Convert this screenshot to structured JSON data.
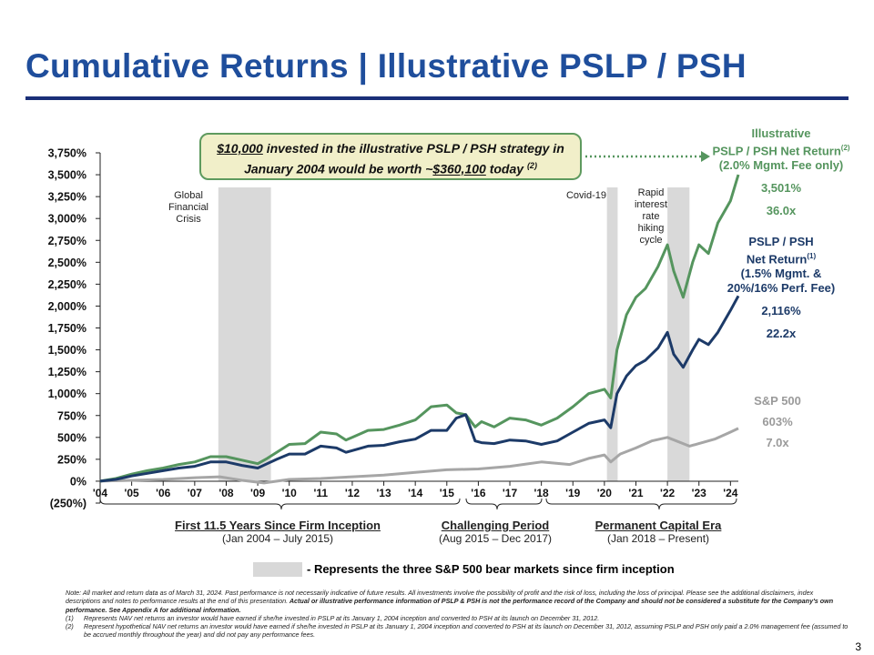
{
  "title": "Cumulative Returns | Illustrative PSLP / PSH",
  "callout": {
    "amount": "$10,000",
    "text1": " invested in the illustrative PSLP / PSH strategy in",
    "text2": "January 2004 would be worth ~",
    "value": "$360,100",
    "text3": " today ",
    "ref": "(2)"
  },
  "legend_right": {
    "illustrative": {
      "line1": "Illustrative",
      "line2": "PSLP / PSH Net Return",
      "line2_sup": "(2)",
      "line3": "(2.0% Mgmt. Fee only)",
      "pct": "3,501%",
      "mult": "36.0x"
    },
    "pslp": {
      "line1": "PSLP / PSH",
      "line2": "Net Return",
      "line2_sup": "(1)",
      "line3": "(1.5% Mgmt. &",
      "line4": "20%/16% Perf. Fee)",
      "pct": "2,116%",
      "mult": "22.2x"
    },
    "sp": {
      "line1": "S&P 500",
      "pct": "603%",
      "mult": "7.0x"
    }
  },
  "periods": [
    {
      "title": "First 11.5 Years Since Firm Inception",
      "sub": "(Jan 2004 – July 2015)"
    },
    {
      "title": "Challenging Period",
      "sub": "(Aug 2015 – Dec 2017)"
    },
    {
      "title": "Permanent Capital Era",
      "sub": "(Jan 2018 – Present)"
    }
  ],
  "bear_legend": "- Represents the three S&P 500 bear markets since firm inception",
  "notes": {
    "main": "Note: All market and return data as of March 31, 2024. Past performance is not necessarily indicative of future results. All investments involve the possibility of profit and the risk of loss, including the loss of principal. Please see the additional disclaimers, index descriptions and notes to performance results at the end of this presentation.",
    "main_bold": " Actual or illustrative performance information of PSLP & PSH is not the performance record of the Company and should not be considered a substitute for the Company's own performance. See Appendix A for additional information.",
    "n1_num": "(1)",
    "n1": "Represents NAV net returns an investor would have earned if she/he invested in PSLP at its January 1, 2004 inception and converted to PSH at its launch on December 31, 2012.",
    "n2_num": "(2)",
    "n2": "Represent hypothetical NAV net returns an investor would have earned if she/he invested in PSLP at its January 1, 2004 inception and converted to PSH at its launch on December 31, 2012, assuming PSLP and PSH only paid a 2.0% management fee (assumed to be accrued monthly throughout the year) and did not pay any performance fees."
  },
  "page_number": "3",
  "chart_data": {
    "type": "line",
    "ylim": [
      -250,
      3750
    ],
    "xlim": [
      2004,
      2024.25
    ],
    "yticks": [
      "3,750%",
      "3,500%",
      "3,250%",
      "3,000%",
      "2,750%",
      "2,500%",
      "2,250%",
      "2,000%",
      "1,750%",
      "1,500%",
      "1,250%",
      "1,000%",
      "750%",
      "500%",
      "250%",
      "0%",
      "(250%)"
    ],
    "ytick_values": [
      3750,
      3500,
      3250,
      3000,
      2750,
      2500,
      2250,
      2000,
      1750,
      1500,
      1250,
      1000,
      750,
      500,
      250,
      0,
      -250
    ],
    "xticks": [
      "'04",
      "'05",
      "'06",
      "'07",
      "'08",
      "'09",
      "'10",
      "'11",
      "'12",
      "'13",
      "'14",
      "'15",
      "'16",
      "'17",
      "'18",
      "'19",
      "'20",
      "'21",
      "'22",
      "'23",
      "'24"
    ],
    "xtick_values": [
      2004,
      2005,
      2006,
      2007,
      2008,
      2009,
      2010,
      2011,
      2012,
      2013,
      2014,
      2015,
      2016,
      2017,
      2018,
      2019,
      2020,
      2021,
      2022,
      2023,
      2024
    ],
    "shaded_periods": [
      {
        "start": 2007.75,
        "end": 2009.42,
        "label": "Global Financial Crisis"
      },
      {
        "start": 2020.08,
        "end": 2020.42,
        "label": "Covid-19"
      },
      {
        "start": 2022.0,
        "end": 2022.7,
        "label": "Rapid interest rate hiking cycle"
      }
    ],
    "series": [
      {
        "name": "Illustrative PSLP / PSH Net Return",
        "color": "#55955e",
        "x": [
          2004,
          2004.5,
          2005,
          2005.5,
          2006,
          2006.5,
          2007,
          2007.5,
          2008,
          2008.5,
          2009,
          2009.3,
          2009.6,
          2010,
          2010.5,
          2011,
          2011.5,
          2011.8,
          2012,
          2012.5,
          2013,
          2013.5,
          2014,
          2014.5,
          2015,
          2015.3,
          2015.6,
          2015.9,
          2016.1,
          2016.5,
          2017,
          2017.5,
          2018,
          2018.5,
          2019,
          2019.5,
          2020,
          2020.2,
          2020.4,
          2020.7,
          2021,
          2021.3,
          2021.7,
          2022,
          2022.2,
          2022.5,
          2022.8,
          2023,
          2023.3,
          2023.6,
          2024,
          2024.25
        ],
        "y": [
          0,
          30,
          80,
          120,
          150,
          190,
          220,
          280,
          280,
          240,
          200,
          260,
          330,
          420,
          430,
          560,
          540,
          470,
          500,
          580,
          590,
          640,
          700,
          850,
          870,
          780,
          760,
          620,
          680,
          620,
          720,
          700,
          640,
          720,
          850,
          1000,
          1050,
          950,
          1500,
          1900,
          2100,
          2200,
          2450,
          2700,
          2400,
          2100,
          2500,
          2700,
          2600,
          2950,
          3200,
          3501
        ]
      },
      {
        "name": "PSLP / PSH Net Return",
        "color": "#1c3a68",
        "x": [
          2004,
          2004.5,
          2005,
          2005.5,
          2006,
          2006.5,
          2007,
          2007.5,
          2008,
          2008.5,
          2009,
          2009.3,
          2009.6,
          2010,
          2010.5,
          2011,
          2011.5,
          2011.8,
          2012,
          2012.5,
          2013,
          2013.5,
          2014,
          2014.5,
          2015,
          2015.3,
          2015.6,
          2015.9,
          2016.1,
          2016.5,
          2017,
          2017.5,
          2018,
          2018.5,
          2019,
          2019.5,
          2020,
          2020.2,
          2020.4,
          2020.7,
          2021,
          2021.3,
          2021.7,
          2022,
          2022.2,
          2022.5,
          2022.8,
          2023,
          2023.3,
          2023.6,
          2024,
          2024.25
        ],
        "y": [
          0,
          20,
          60,
          90,
          120,
          150,
          170,
          220,
          220,
          180,
          150,
          200,
          250,
          310,
          310,
          400,
          380,
          330,
          350,
          400,
          410,
          450,
          480,
          580,
          580,
          720,
          760,
          460,
          440,
          430,
          470,
          460,
          420,
          460,
          560,
          660,
          700,
          610,
          1000,
          1200,
          1320,
          1380,
          1520,
          1700,
          1450,
          1300,
          1500,
          1620,
          1560,
          1700,
          1950,
          2116
        ]
      },
      {
        "name": "S&P 500",
        "color": "#a6a6a6",
        "x": [
          2004,
          2005,
          2006,
          2007,
          2007.8,
          2008.5,
          2009.2,
          2010,
          2011,
          2012,
          2013,
          2014,
          2015,
          2016,
          2017,
          2018,
          2018.9,
          2019.5,
          2020,
          2020.2,
          2020.5,
          2021,
          2021.5,
          2022,
          2022.7,
          2023,
          2023.5,
          2024,
          2024.25
        ],
        "y": [
          0,
          10,
          20,
          40,
          50,
          10,
          -20,
          20,
          30,
          50,
          70,
          100,
          130,
          140,
          170,
          220,
          190,
          260,
          300,
          220,
          310,
          380,
          460,
          500,
          400,
          430,
          480,
          560,
          603
        ]
      }
    ]
  }
}
